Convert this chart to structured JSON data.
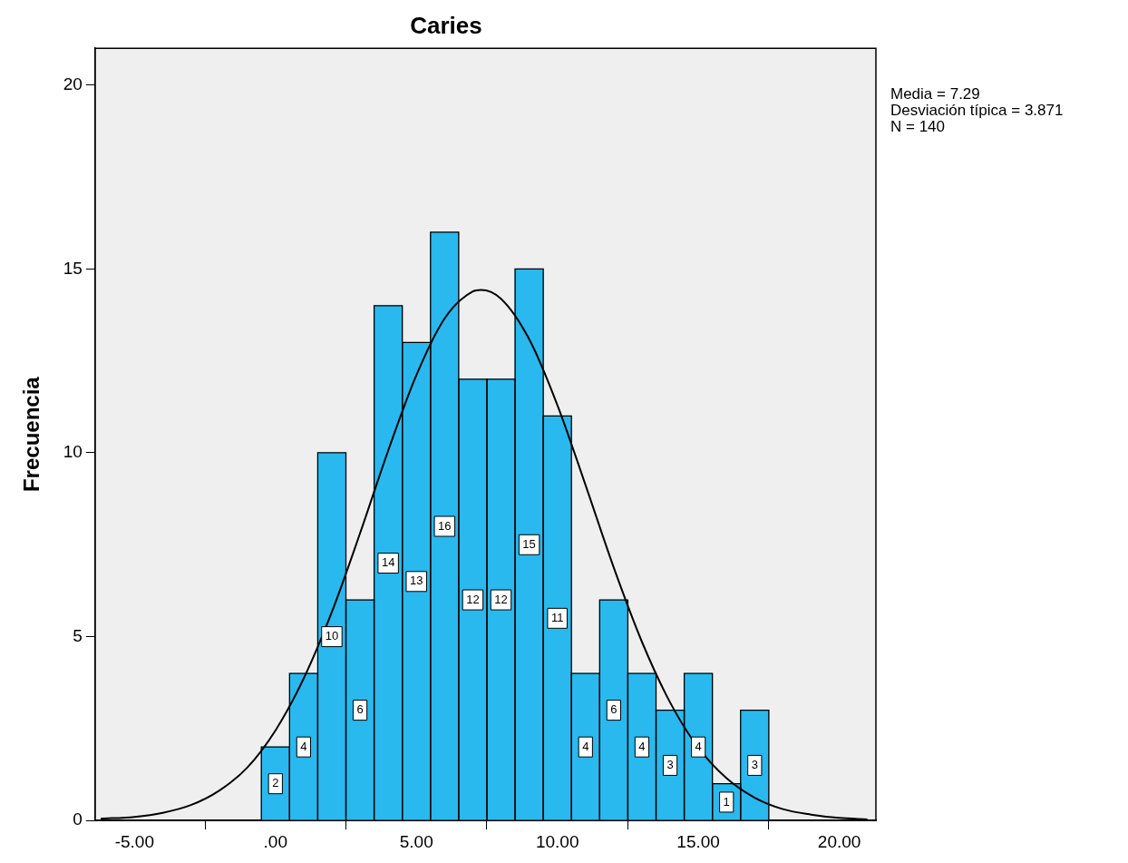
{
  "chart_data": {
    "type": "histogram",
    "title": "Caries",
    "ylabel": "Frecuencia",
    "bins": [
      -0.5,
      0.5,
      1.5,
      2.5,
      3.5,
      4.5,
      5.5,
      6.5,
      7.5,
      8.5,
      9.5,
      10.5,
      11.5,
      12.5,
      13.5,
      14.5,
      15.5,
      16.5,
      17.5
    ],
    "values": [
      2,
      4,
      10,
      6,
      14,
      13,
      16,
      12,
      12,
      15,
      11,
      4,
      6,
      4,
      3,
      4,
      1,
      3
    ],
    "color": "#29b9ee",
    "value_labels": [
      "2",
      "4",
      "10",
      "6",
      "14",
      "13",
      "16",
      "12",
      "12",
      "15",
      "11",
      "4",
      "6",
      "4",
      "3",
      "4",
      "1",
      "3"
    ],
    "series": [
      {
        "type": "line",
        "color": "#000000",
        "marker": "none",
        "x": [
          -6.2,
          -5,
          -4,
          -3,
          -2,
          -1,
          0,
          1,
          2,
          3,
          4,
          5,
          6,
          7,
          7.29,
          8,
          9,
          10,
          11,
          12,
          13,
          14,
          15,
          16,
          17,
          18,
          19,
          20,
          21
        ],
        "values": [
          0.05,
          0.1,
          0.21,
          0.42,
          0.81,
          1.44,
          2.45,
          3.86,
          5.67,
          7.81,
          10.06,
          12.11,
          13.65,
          14.39,
          14.43,
          14.19,
          13.09,
          11.3,
          9.12,
          6.88,
          4.86,
          3.21,
          1.98,
          1.15,
          0.62,
          0.31,
          0.16,
          0.07,
          0.03
        ]
      }
    ],
    "xlim": [
      -6.4,
      21.3
    ],
    "ylim": [
      0,
      21
    ],
    "xticks": [
      {
        "value": -5,
        "label": "-5.00"
      },
      {
        "value": 0,
        "label": ".00"
      },
      {
        "value": 5,
        "label": "5.00"
      },
      {
        "value": 10,
        "label": "10.00"
      },
      {
        "value": 15,
        "label": "15.00"
      },
      {
        "value": 20,
        "label": "20.00"
      }
    ],
    "yticks": [
      0,
      5,
      10,
      15,
      20
    ],
    "grid": false,
    "legend": false,
    "annotations": [
      "Media = 7.29",
      "Desviación típica = 3.871",
      "N = 140"
    ]
  }
}
